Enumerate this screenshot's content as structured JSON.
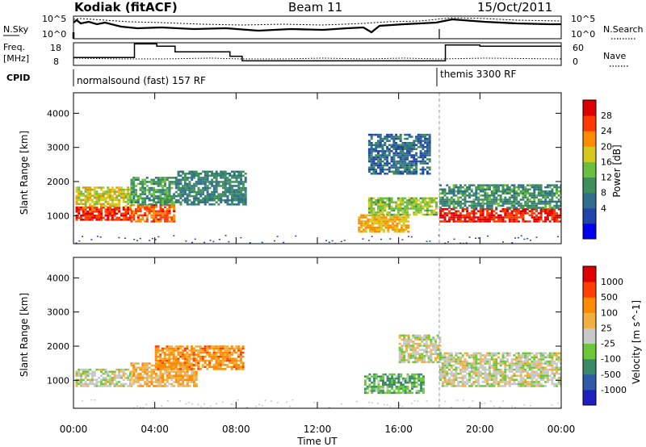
{
  "header": {
    "station": "Kodiak (fitACF)",
    "beam": "Beam 11",
    "date": "15/Oct/2011"
  },
  "top_strip": {
    "left_label": "N.Sky",
    "right_label": "N.Search",
    "left_ticks": [
      "10^5",
      "10^0"
    ],
    "right_ticks": [
      "10^5",
      "10^0"
    ]
  },
  "freq_strip": {
    "left_label_1": "Freq.",
    "left_label_2": "[MHz]",
    "right_label": "Nave",
    "left_ticks": [
      "18",
      "8"
    ],
    "right_ticks": [
      "60",
      "0"
    ]
  },
  "cpid": {
    "label": "CPID",
    "program_1": "normalsound (fast) 157 RF",
    "program_2": "themis 3300 RF"
  },
  "power_panel": {
    "ylabel": "Slant Range [km]",
    "colorbar_label": "Power [dB]",
    "colorbar_ticks": [
      "28",
      "24",
      "20",
      "16",
      "12",
      "8",
      "4"
    ]
  },
  "velocity_panel": {
    "ylabel": "Slant Range [km]",
    "colorbar_label": "Velocity [m s^-1]",
    "colorbar_ticks": [
      "1000",
      "500",
      "100",
      "25",
      "-25",
      "-100",
      "-500",
      "-1000"
    ]
  },
  "x_axis": {
    "label": "Time UT",
    "ticks": [
      "00:00",
      "04:00",
      "08:00",
      "12:00",
      "16:00",
      "20:00",
      "00:00"
    ]
  },
  "chart_data": [
    {
      "type": "heatmap",
      "title": "Power",
      "ylabel": "Slant Range [km]",
      "xlabel": "Time UT",
      "x_range_hours": [
        0,
        24
      ],
      "ylim": [
        180,
        4600
      ],
      "yticks": [
        1000,
        2000,
        3000,
        4000
      ],
      "colorbar": {
        "label": "Power [dB]",
        "range": [
          0,
          30
        ],
        "ticks": [
          4,
          8,
          12,
          16,
          20,
          24,
          28
        ],
        "colors": [
          "#0000ee",
          "#2044a8",
          "#2f6f8c",
          "#3f8f5a",
          "#6cbf3e",
          "#d7c81f",
          "#ff8c00",
          "#ff3a00",
          "#e00000"
        ]
      },
      "regions": [
        {
          "t": [
            0.1,
            2.8
          ],
          "r": [
            850,
            1250
          ],
          "value": 26
        },
        {
          "t": [
            0.1,
            2.8
          ],
          "r": [
            1250,
            1800
          ],
          "value": 18
        },
        {
          "t": [
            2.8,
            5.0
          ],
          "r": [
            800,
            1300
          ],
          "value": 24
        },
        {
          "t": [
            2.8,
            5.0
          ],
          "r": [
            1300,
            2100
          ],
          "value": 12
        },
        {
          "t": [
            5.0,
            8.5
          ],
          "r": [
            1300,
            2300
          ],
          "value": 10
        },
        {
          "t": [
            14.0,
            16.5
          ],
          "r": [
            500,
            1000
          ],
          "value": 20
        },
        {
          "t": [
            14.5,
            17.9
          ],
          "r": [
            1000,
            1500
          ],
          "value": 16
        },
        {
          "t": [
            18.0,
            24.0
          ],
          "r": [
            800,
            1200
          ],
          "value": 27
        },
        {
          "t": [
            18.0,
            24.0
          ],
          "r": [
            1200,
            1900
          ],
          "value": 11
        },
        {
          "t": [
            14.5,
            17.5
          ],
          "r": [
            2200,
            3400
          ],
          "value": 8
        }
      ]
    },
    {
      "type": "heatmap",
      "title": "Velocity",
      "ylabel": "Slant Range [km]",
      "xlabel": "Time UT",
      "x_range_hours": [
        0,
        24
      ],
      "ylim": [
        180,
        4600
      ],
      "yticks": [
        1000,
        2000,
        3000,
        4000
      ],
      "colorbar": {
        "label": "Velocity [m s^-1]",
        "range": [
          -1000,
          1000
        ],
        "ticks": [
          1000,
          500,
          100,
          25,
          -25,
          -100,
          -500,
          -1000
        ],
        "colors": [
          "#2020c0",
          "#2e5aa8",
          "#3a8a6a",
          "#6cc83a",
          "#c8c8c8",
          "#f0b040",
          "#ff8c00",
          "#ff4000",
          "#e00000"
        ]
      },
      "regions": [
        {
          "t": [
            0.1,
            2.8
          ],
          "r": [
            800,
            1300
          ],
          "value": 0
        },
        {
          "t": [
            2.8,
            6.0
          ],
          "r": [
            800,
            1500
          ],
          "value": 250
        },
        {
          "t": [
            4.0,
            8.3
          ],
          "r": [
            1300,
            2000
          ],
          "value": 400
        },
        {
          "t": [
            14.3,
            17.2
          ],
          "r": [
            600,
            1200
          ],
          "value": -300
        },
        {
          "t": [
            16.0,
            18.0
          ],
          "r": [
            1500,
            2300
          ],
          "value": 0
        },
        {
          "t": [
            18.0,
            24.0
          ],
          "r": [
            800,
            1800
          ],
          "value": 0
        }
      ]
    }
  ],
  "beam_params": {
    "freq_mhz_steps": [
      [
        0,
        11.5
      ],
      [
        3.0,
        17.5
      ],
      [
        4.1,
        16.5
      ],
      [
        5.0,
        14
      ],
      [
        7.7,
        12
      ],
      [
        8.3,
        10
      ],
      [
        17.0,
        10
      ],
      [
        18.3,
        17
      ],
      [
        20.0,
        16.5
      ],
      [
        24,
        16.5
      ]
    ],
    "cpid_change_hour": 18.0
  }
}
